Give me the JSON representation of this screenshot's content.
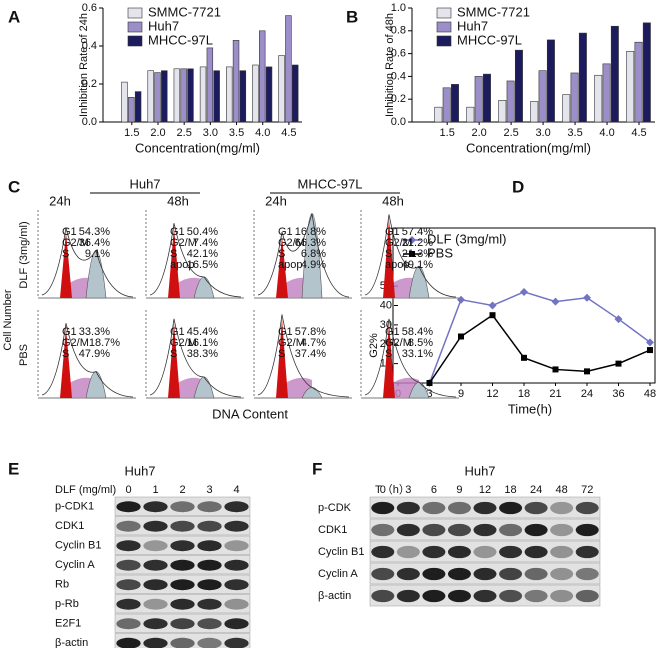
{
  "chart_data": [
    {
      "panel": "A",
      "type": "bar",
      "ylabel": "Inhibition Rate of 24h",
      "xlabel": "Concentration(mg/ml)",
      "categories": [
        "1.5",
        "2.0",
        "2.5",
        "3.0",
        "3.5",
        "4.0",
        "4.5"
      ],
      "series": [
        {
          "name": "SMMC-7721",
          "color": "#e4e4ec",
          "values": [
            0.21,
            0.27,
            0.28,
            0.29,
            0.29,
            0.3,
            0.35
          ]
        },
        {
          "name": "Huh7",
          "color": "#9c8fc9",
          "values": [
            0.13,
            0.26,
            0.28,
            0.39,
            0.43,
            0.48,
            0.56
          ]
        },
        {
          "name": "MHCC-97L",
          "color": "#1b1b5e",
          "values": [
            0.16,
            0.27,
            0.28,
            0.27,
            0.27,
            0.29,
            0.3
          ]
        }
      ],
      "ylim": [
        0,
        0.6
      ],
      "yticks": [
        {
          "value": 0,
          "label": "0.0"
        },
        0.2,
        0.4,
        0.6
      ],
      "legend": "upper left"
    },
    {
      "panel": "B",
      "type": "bar",
      "ylabel": "Inhibition Rate of 48h",
      "xlabel": "Concentration(mg/ml)",
      "categories": [
        "1.5",
        "2.0",
        "2.5",
        "3.0",
        "3.5",
        "4.0",
        "4.5"
      ],
      "series": [
        {
          "name": "SMMC-7721",
          "color": "#e4e4ec",
          "values": [
            0.13,
            0.13,
            0.19,
            0.18,
            0.24,
            0.41,
            0.62
          ]
        },
        {
          "name": "Huh7",
          "color": "#9c8fc9",
          "values": [
            0.3,
            0.4,
            0.36,
            0.45,
            0.43,
            0.51,
            0.7
          ]
        },
        {
          "name": "MHCC-97L",
          "color": "#1b1b5e",
          "values": [
            0.33,
            0.42,
            0.63,
            0.72,
            0.78,
            0.84,
            0.87
          ]
        }
      ],
      "ylim": [
        0,
        1
      ],
      "yticks": [
        {
          "value": 0,
          "label": "0.0"
        },
        0.2,
        0.4,
        0.6,
        0.8,
        {
          "value": 1,
          "label": "1.0"
        }
      ],
      "legend": "upper left"
    },
    {
      "panel": "D",
      "type": "line",
      "ylabel": "G2%",
      "xlabel": "Time(h)",
      "categories": [
        "0",
        "3",
        "9",
        "12",
        "18",
        "21",
        "24",
        "36",
        "48"
      ],
      "series": [
        {
          "name": "DLF (3mg/ml)",
          "color": "#7373c4",
          "marker": "diamond",
          "values": [
            null,
            0,
            43,
            40,
            47,
            42,
            44,
            33,
            21
          ]
        },
        {
          "name": "PBS",
          "color": "#000000",
          "marker": "square",
          "values": [
            null,
            0,
            24,
            35,
            13,
            7,
            6,
            10,
            17
          ]
        }
      ],
      "ylim": [
        0,
        80
      ],
      "yticks": [
        0,
        10,
        20,
        30,
        40,
        50
      ],
      "legend": "upper left"
    }
  ],
  "panel_c": {
    "panel": "C",
    "groups": [
      "Huh7",
      "MHCC-97L"
    ],
    "times": [
      "24h",
      "48h",
      "24h",
      "48h"
    ],
    "rows": [
      "DLF (3mg/ml)",
      "PBS"
    ],
    "ylabel": "Cell Number",
    "xlabel": "DNA Content",
    "plots": [
      [
        [
          {
            "label": "G1",
            "value": "54.3%"
          },
          {
            "label": "G2/M",
            "value": "36.4%"
          },
          {
            "label": "S",
            "value": "9.1%"
          }
        ],
        [
          {
            "label": "G1",
            "value": "50.4%"
          },
          {
            "label": "G2/M",
            "value": "7.4%"
          },
          {
            "label": "S",
            "value": "42.1%"
          },
          {
            "label": "apop",
            "value": "16.5%"
          }
        ],
        [
          {
            "label": "G1",
            "value": "16.8%"
          },
          {
            "label": "G2/M",
            "value": "66.3%"
          },
          {
            "label": "S",
            "value": "6.8%"
          },
          {
            "label": "apop",
            "value": "4.9%"
          }
        ],
        [
          {
            "label": "G1",
            "value": "57.4%"
          },
          {
            "label": "G2/M",
            "value": "21.2%"
          },
          {
            "label": "S",
            "value": "21.3%"
          },
          {
            "label": "apop",
            "value": "49.1%"
          }
        ]
      ],
      [
        [
          {
            "label": "G1",
            "value": "33.3%"
          },
          {
            "label": "G2/M18.7%",
            "value": ""
          },
          {
            "label": "S",
            "value": "47.9%"
          }
        ],
        [
          {
            "label": "G1",
            "value": "45.4%"
          },
          {
            "label": "G2/M",
            "value": "16.1%"
          },
          {
            "label": "S",
            "value": "38.3%"
          }
        ],
        [
          {
            "label": "G1",
            "value": "57.8%"
          },
          {
            "label": "G2/M",
            "value": "4.7%"
          },
          {
            "label": "S",
            "value": "37.4%"
          }
        ],
        [
          {
            "label": "G1",
            "value": "58.4%"
          },
          {
            "label": "G2/M",
            "value": "8.5%"
          },
          {
            "label": "S",
            "value": "33.1%"
          }
        ]
      ]
    ]
  },
  "panel_e": {
    "panel": "E",
    "title": "Huh7",
    "lane_header": "DLF (mg/ml)",
    "lanes": [
      "0",
      "1",
      "2",
      "3",
      "4"
    ],
    "rows": [
      "p-CDK1",
      "CDK1",
      "Cyclin B1",
      "Cyclin A",
      "Rb",
      "p-Rb",
      "E2F1",
      "β-actin"
    ]
  },
  "panel_f": {
    "panel": "F",
    "title": "Huh7",
    "lane_header": "T（h）",
    "lanes": [
      "0",
      "3",
      "6",
      "9",
      "12",
      "18",
      "24",
      "48",
      "72"
    ],
    "rows": [
      "p-CDK",
      "CDK1",
      "Cyclin B1",
      "Cyclin A",
      "β-actin"
    ]
  }
}
